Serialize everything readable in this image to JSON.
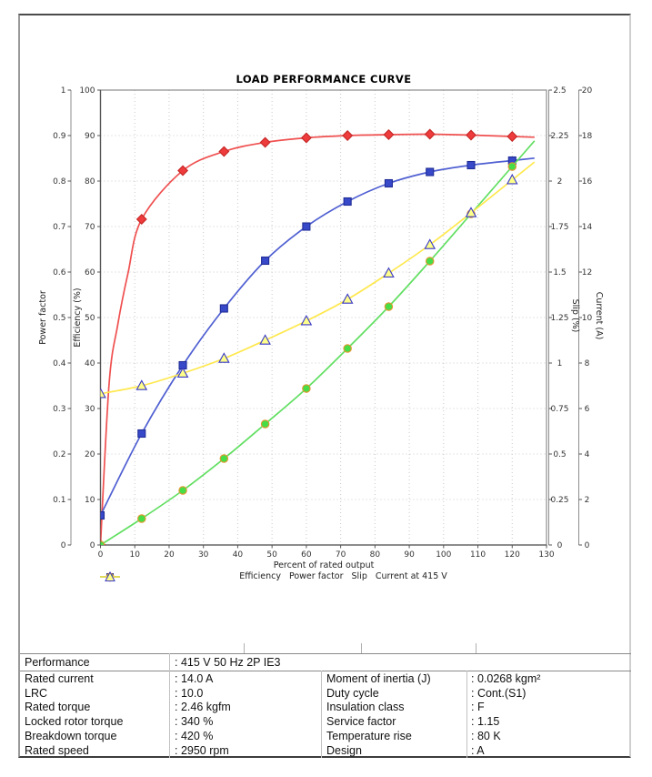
{
  "chart_data": {
    "type": "line",
    "title": "LOAD PERFORMANCE CURVE",
    "xlabel": "Percent of rated output",
    "xlim": [
      0,
      130
    ],
    "x_ticks": [
      "0",
      "10",
      "20",
      "30",
      "40",
      "50",
      "60",
      "70",
      "80",
      "90",
      "100",
      "110",
      "120",
      "130"
    ],
    "grid": "dotted",
    "legend_position": "bottom",
    "axes": {
      "power_factor": {
        "label": "Power factor",
        "range": [
          0,
          1
        ],
        "ticks": [
          "0",
          "0.1",
          "0.2",
          "0.3",
          "0.4",
          "0.5",
          "0.6",
          "0.7",
          "0.8",
          "0.9",
          "1"
        ]
      },
      "efficiency": {
        "label": "Efficiency (%)",
        "range": [
          0,
          100
        ],
        "ticks": [
          "0",
          "10",
          "20",
          "30",
          "40",
          "50",
          "60",
          "70",
          "80",
          "90",
          "100"
        ]
      },
      "slip": {
        "label": "Slip (%)",
        "range": [
          0,
          2.5
        ],
        "ticks": [
          "0",
          "0.25",
          "0.5",
          "0.75",
          "1",
          "1.25",
          "1.5",
          "1.75",
          "2",
          "2.25",
          "2.5"
        ]
      },
      "current": {
        "label": "Current (A)",
        "range": [
          0,
          20
        ],
        "ticks": [
          "0",
          "2",
          "4",
          "6",
          "8",
          "10",
          "12",
          "14",
          "16",
          "18",
          "20"
        ]
      }
    },
    "x": [
      0,
      12,
      24,
      36,
      48,
      60,
      72,
      84,
      96,
      108,
      120
    ],
    "series": [
      {
        "name": "Efficiency",
        "axis": "efficiency",
        "marker": "diamond",
        "line_color": "#f05050",
        "marker_fill": "#ee3b3b",
        "marker_stroke": "#c62828",
        "values": [
          0,
          71.6,
          82.3,
          86.5,
          88.5,
          89.5,
          90.0,
          90.2,
          90.3,
          90.1,
          89.8
        ]
      },
      {
        "name": "Power factor",
        "axis": "power_factor",
        "marker": "square",
        "line_color": "#4f5fd2",
        "marker_fill": "#3748c8",
        "marker_stroke": "#1f2d96",
        "values": [
          0.065,
          0.245,
          0.395,
          0.52,
          0.625,
          0.7,
          0.755,
          0.795,
          0.82,
          0.835,
          0.845
        ]
      },
      {
        "name": "Slip",
        "axis": "slip",
        "marker": "circle",
        "line_color": "#62df62",
        "marker_fill": "#47dd47",
        "marker_stroke": "#e6952e",
        "values": [
          0,
          0.145,
          0.3,
          0.475,
          0.665,
          0.86,
          1.08,
          1.31,
          1.56,
          1.82,
          2.08
        ]
      },
      {
        "name": "Current at 415 V",
        "axis": "current",
        "marker": "triangle",
        "line_color": "#ffe84d",
        "marker_fill": "#ffff8a",
        "marker_stroke": "#3a3ac8",
        "values": [
          6.65,
          7.0,
          7.55,
          8.2,
          9.0,
          9.85,
          10.8,
          11.95,
          13.2,
          14.6,
          16.05
        ]
      }
    ]
  },
  "table": {
    "performance_label": "Performance",
    "performance_value": ": 415 V 50 Hz 2P IE3",
    "left_rows": [
      {
        "label": "Rated current",
        "value": ": 14.0 A"
      },
      {
        "label": "LRC",
        "value": ": 10.0"
      },
      {
        "label": "Rated torque",
        "value": ": 2.46 kgfm"
      },
      {
        "label": "Locked rotor torque",
        "value": ": 340 %"
      },
      {
        "label": "Breakdown torque",
        "value": ": 420 %"
      },
      {
        "label": "Rated speed",
        "value": ": 2950 rpm"
      }
    ],
    "right_rows": [
      {
        "label": "Moment of inertia (J)",
        "value": ": 0.0268 kgm²"
      },
      {
        "label": "Duty cycle",
        "value": ": Cont.(S1)"
      },
      {
        "label": "Insulation class",
        "value": ": F"
      },
      {
        "label": "Service factor",
        "value": ": 1.15"
      },
      {
        "label": "Temperature rise",
        "value": ": 80 K"
      },
      {
        "label": "Design",
        "value": ": A"
      }
    ]
  }
}
